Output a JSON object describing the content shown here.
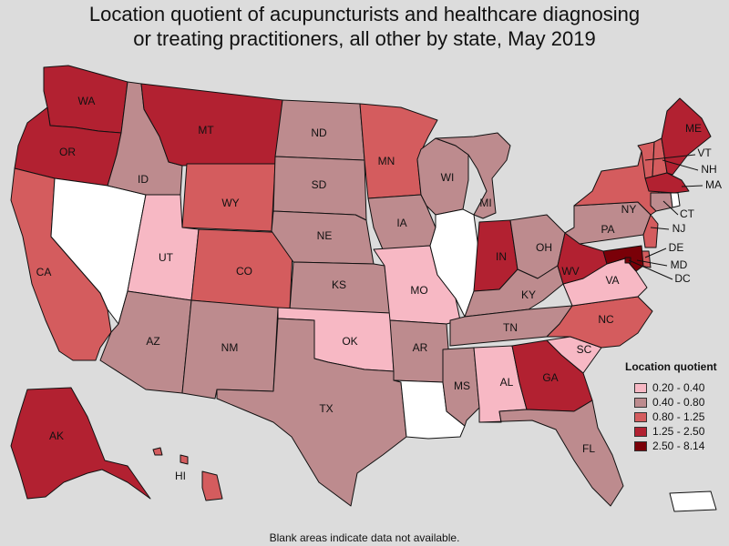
{
  "title": {
    "line1": "Location quotient of acupuncturists and healthcare diagnosing",
    "line2": "or treating practitioners, all other by state, May 2019"
  },
  "legend": {
    "title": "Location quotient",
    "items": [
      {
        "label": "0.20 - 0.40",
        "color": "#f7b8c4"
      },
      {
        "label": "0.40 - 0.80",
        "color": "#bd8b8e"
      },
      {
        "label": "0.80 - 1.25",
        "color": "#d45c5e"
      },
      {
        "label": "1.25 - 2.50",
        "color": "#b22131"
      },
      {
        "label": "2.50 - 8.14",
        "color": "#7a0008"
      }
    ]
  },
  "footnote": "Blank areas indicate data not available.",
  "states": {
    "WA": 3,
    "OR": 3,
    "CA": 2,
    "NV": -1,
    "ID": 1,
    "MT": 3,
    "WY": 2,
    "UT": 0,
    "CO": 2,
    "AZ": 1,
    "NM": 1,
    "ND": 1,
    "SD": 1,
    "NE": 1,
    "KS": 1,
    "OK": 0,
    "TX": 1,
    "MN": 2,
    "IA": 1,
    "MO": 0,
    "AR": 1,
    "LA": -1,
    "WI": 1,
    "IL": -1,
    "MI": 1,
    "IN": 3,
    "OH": 1,
    "KY": 1,
    "TN": 1,
    "MS": 1,
    "AL": 0,
    "GA": 3,
    "FL": 1,
    "SC": 0,
    "NC": 2,
    "VA": 0,
    "WV": 3,
    "PA": 1,
    "NY": 2,
    "VT": 2,
    "NH": 2,
    "ME": 3,
    "MA": 3,
    "CT": 1,
    "RI": -1,
    "NJ": 2,
    "DE": 2,
    "MD": 4,
    "DC": 4,
    "AK": 3,
    "HI": 2,
    "PR": -1
  }
}
